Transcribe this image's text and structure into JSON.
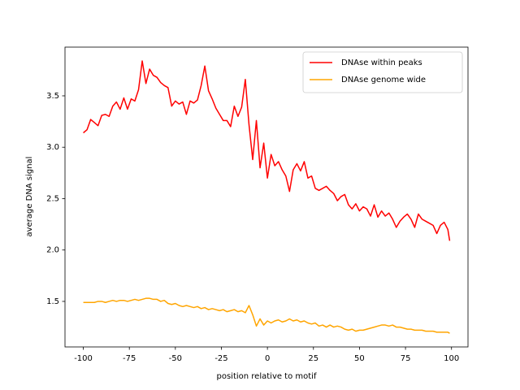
{
  "chart_data": {
    "type": "line",
    "xlabel": "position relative to motif",
    "ylabel": "average DNA signal",
    "x": [
      -100,
      -98,
      -96,
      -94,
      -92,
      -90,
      -88,
      -86,
      -84,
      -82,
      -80,
      -78,
      -76,
      -74,
      -72,
      -70,
      -68,
      -66,
      -64,
      -62,
      -60,
      -58,
      -56,
      -54,
      -52,
      -50,
      -48,
      -46,
      -44,
      -42,
      -40,
      -38,
      -36,
      -34,
      -32,
      -30,
      -28,
      -26,
      -24,
      -22,
      -20,
      -18,
      -16,
      -14,
      -12,
      -10,
      -8,
      -6,
      -4,
      -2,
      0,
      2,
      4,
      6,
      8,
      10,
      12,
      14,
      16,
      18,
      20,
      22,
      24,
      26,
      28,
      30,
      32,
      34,
      36,
      38,
      40,
      42,
      44,
      46,
      48,
      50,
      52,
      54,
      56,
      58,
      60,
      62,
      64,
      66,
      68,
      70,
      72,
      74,
      76,
      78,
      80,
      82,
      84,
      86,
      88,
      90,
      92,
      94,
      96,
      98,
      99
    ],
    "series": [
      {
        "name": "DNAse within peaks",
        "color": "#ff0000",
        "values": [
          3.14,
          3.17,
          3.27,
          3.24,
          3.21,
          3.31,
          3.32,
          3.3,
          3.4,
          3.44,
          3.37,
          3.48,
          3.37,
          3.47,
          3.45,
          3.56,
          3.84,
          3.62,
          3.76,
          3.7,
          3.68,
          3.63,
          3.6,
          3.58,
          3.4,
          3.45,
          3.42,
          3.44,
          3.32,
          3.45,
          3.43,
          3.46,
          3.6,
          3.79,
          3.55,
          3.47,
          3.38,
          3.32,
          3.26,
          3.26,
          3.2,
          3.4,
          3.3,
          3.39,
          3.66,
          3.22,
          2.88,
          3.26,
          2.8,
          3.04,
          2.7,
          2.93,
          2.82,
          2.86,
          2.78,
          2.72,
          2.57,
          2.78,
          2.84,
          2.77,
          2.86,
          2.7,
          2.72,
          2.6,
          2.58,
          2.6,
          2.62,
          2.58,
          2.55,
          2.48,
          2.52,
          2.54,
          2.44,
          2.4,
          2.45,
          2.38,
          2.42,
          2.4,
          2.33,
          2.44,
          2.32,
          2.38,
          2.33,
          2.36,
          2.3,
          2.22,
          2.28,
          2.32,
          2.35,
          2.3,
          2.22,
          2.35,
          2.3,
          2.28,
          2.26,
          2.24,
          2.16,
          2.24,
          2.27,
          2.2,
          2.09
        ]
      },
      {
        "name": "DNAse genome wide",
        "color": "#ffa500",
        "values": [
          1.49,
          1.49,
          1.49,
          1.49,
          1.5,
          1.5,
          1.49,
          1.5,
          1.51,
          1.5,
          1.51,
          1.51,
          1.5,
          1.51,
          1.52,
          1.51,
          1.52,
          1.53,
          1.53,
          1.52,
          1.52,
          1.5,
          1.51,
          1.48,
          1.47,
          1.48,
          1.46,
          1.45,
          1.46,
          1.45,
          1.44,
          1.45,
          1.43,
          1.44,
          1.42,
          1.43,
          1.42,
          1.41,
          1.42,
          1.4,
          1.41,
          1.42,
          1.4,
          1.41,
          1.39,
          1.46,
          1.37,
          1.26,
          1.33,
          1.27,
          1.31,
          1.29,
          1.31,
          1.32,
          1.3,
          1.31,
          1.33,
          1.31,
          1.32,
          1.3,
          1.31,
          1.29,
          1.28,
          1.29,
          1.26,
          1.27,
          1.25,
          1.27,
          1.25,
          1.26,
          1.25,
          1.23,
          1.22,
          1.23,
          1.21,
          1.22,
          1.22,
          1.23,
          1.24,
          1.25,
          1.26,
          1.27,
          1.27,
          1.26,
          1.27,
          1.25,
          1.25,
          1.24,
          1.23,
          1.23,
          1.22,
          1.22,
          1.22,
          1.21,
          1.21,
          1.21,
          1.2,
          1.2,
          1.2,
          1.2,
          1.19
        ]
      }
    ],
    "xlim": [
      -109.95,
      108.95
    ],
    "ylim": [
      1.057,
      3.974
    ],
    "xticks": [
      -100,
      -75,
      -50,
      -25,
      0,
      25,
      50,
      75,
      100
    ],
    "yticks": [
      1.5,
      {
        "value": 2,
        "label": "2.0"
      },
      2.5,
      {
        "value": 3,
        "label": "3.0"
      },
      3.5
    ],
    "legend": "upper right"
  }
}
